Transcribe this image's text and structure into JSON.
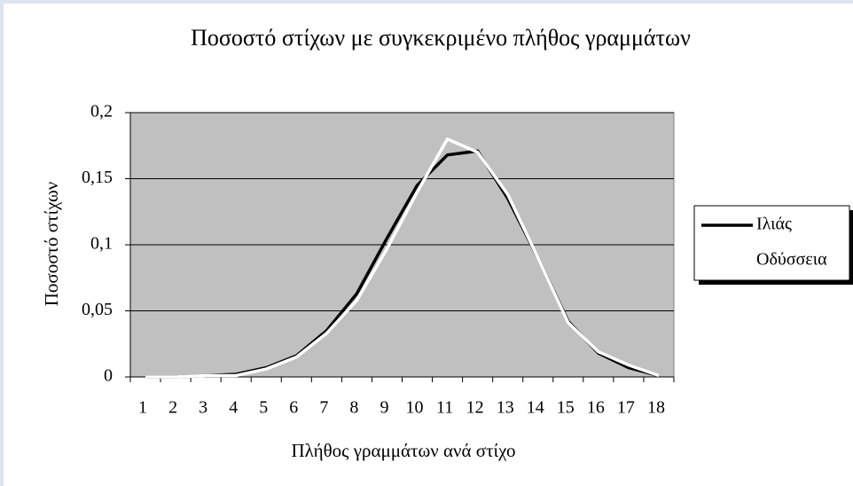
{
  "chart_data": {
    "type": "line",
    "title": "Ποσοστό στίχων με συγκεκριμένο πλήθος γραμμάτων",
    "x_label": "Πλήθος γραμμάτων ανά στίχο",
    "y_label": "Ποσοστό στίχων",
    "categories": [
      "1",
      "2",
      "3",
      "4",
      "5",
      "6",
      "7",
      "8",
      "9",
      "10",
      "11",
      "12",
      "13",
      "14",
      "15",
      "16",
      "17",
      "18"
    ],
    "series": [
      {
        "name": "Ιλιάς",
        "color": "#000000",
        "values": [
          0,
          0,
          0.001,
          0.002,
          0.007,
          0.016,
          0.035,
          0.063,
          0.105,
          0.145,
          0.168,
          0.171,
          0.135,
          0.09,
          0.042,
          0.018,
          0.007,
          0.001
        ]
      },
      {
        "name": "Οδύσσεια",
        "color": "#ffffff",
        "values": [
          0,
          0,
          0.001,
          0.001,
          0.006,
          0.015,
          0.033,
          0.058,
          0.097,
          0.14,
          0.18,
          0.17,
          0.138,
          0.09,
          0.041,
          0.019,
          0.009,
          0.001
        ]
      }
    ],
    "ylim": [
      0,
      0.2
    ],
    "yticks": [
      0,
      {
        "value": 0.05,
        "label": "0,05"
      },
      {
        "value": 0.1,
        "label": "0,1"
      },
      {
        "value": 0.15,
        "label": "0,15"
      },
      {
        "value": 0.2,
        "label": "0,2"
      }
    ],
    "grid": true,
    "legend": "right",
    "plot_color": "#c0c0c0"
  }
}
